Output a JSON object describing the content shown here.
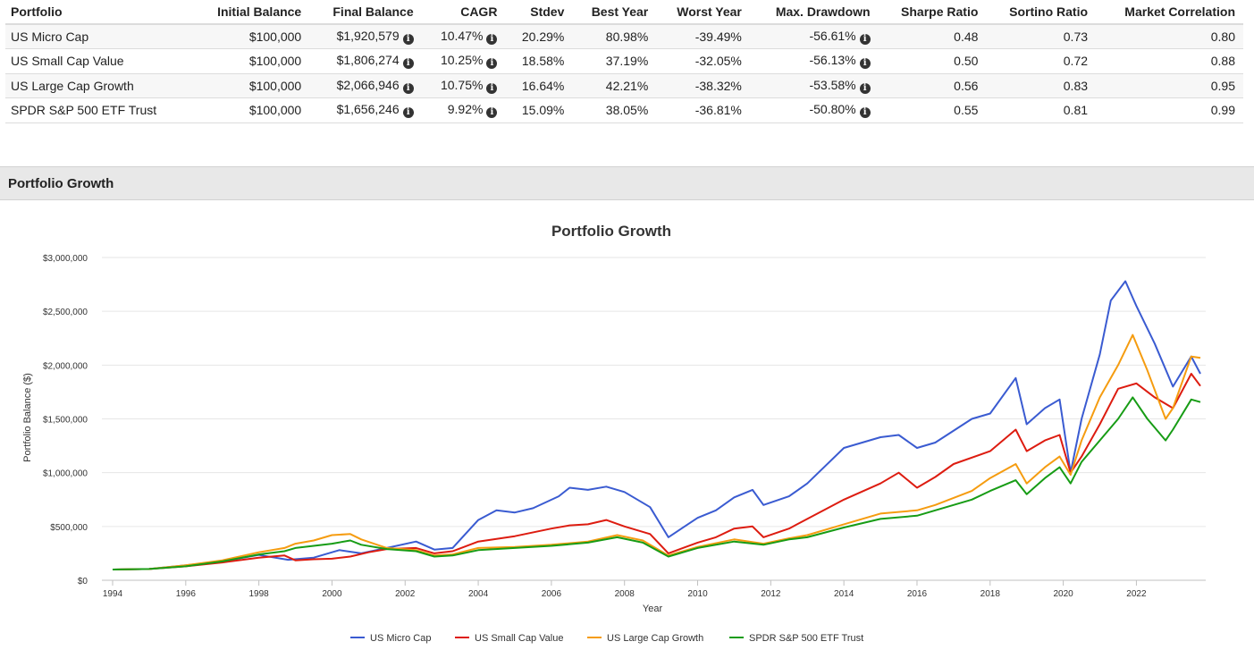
{
  "table": {
    "headers": [
      "Portfolio",
      "Initial Balance",
      "Final Balance",
      "CAGR",
      "Stdev",
      "Best Year",
      "Worst Year",
      "Max. Drawdown",
      "Sharpe Ratio",
      "Sortino Ratio",
      "Market Correlation"
    ],
    "rows": [
      [
        "US Micro Cap",
        "$100,000",
        "$1,920,579",
        "10.47%",
        "20.29%",
        "80.98%",
        "-39.49%",
        "-56.61%",
        "0.48",
        "0.73",
        "0.80"
      ],
      [
        "US Small Cap Value",
        "$100,000",
        "$1,806,274",
        "10.25%",
        "18.58%",
        "37.19%",
        "-32.05%",
        "-56.13%",
        "0.50",
        "0.72",
        "0.88"
      ],
      [
        "US Large Cap Growth",
        "$100,000",
        "$2,066,946",
        "10.75%",
        "16.64%",
        "42.21%",
        "-38.32%",
        "-53.58%",
        "0.56",
        "0.83",
        "0.95"
      ],
      [
        "SPDR S&P 500 ETF Trust",
        "$100,000",
        "$1,656,246",
        "9.92%",
        "15.09%",
        "38.05%",
        "-36.81%",
        "-50.80%",
        "0.55",
        "0.81",
        "0.99"
      ]
    ],
    "info_icon": "info-circle-icon"
  },
  "section": {
    "title": "Portfolio Growth"
  },
  "chart_data": {
    "type": "line",
    "title": "Portfolio Growth",
    "xlabel": "Year",
    "ylabel": "Portfolio Balance ($)",
    "xlim": [
      1994.0,
      2023.75
    ],
    "ylim": [
      0,
      3000000
    ],
    "x_ticks": [
      "1994",
      "1996",
      "1998",
      "2000",
      "2002",
      "2004",
      "2006",
      "2008",
      "2010",
      "2012",
      "2014",
      "2016",
      "2018",
      "2020",
      "2022"
    ],
    "y_ticks": [
      "$0",
      "$500,000",
      "$1,000,000",
      "$1,500,000",
      "$2,000,000",
      "$2,500,000",
      "$3,000,000"
    ],
    "grid": "horizontal",
    "legend": "bottom-center",
    "series": [
      {
        "name": "US Micro Cap",
        "color": "#3a5bd1",
        "points": [
          [
            1994.0,
            100000
          ],
          [
            1995.0,
            105000
          ],
          [
            1996.0,
            140000
          ],
          [
            1997.0,
            175000
          ],
          [
            1998.0,
            235000
          ],
          [
            1998.8,
            190000
          ],
          [
            1999.5,
            210000
          ],
          [
            2000.2,
            280000
          ],
          [
            2000.8,
            250000
          ],
          [
            2001.5,
            300000
          ],
          [
            2002.3,
            360000
          ],
          [
            2002.8,
            285000
          ],
          [
            2003.3,
            300000
          ],
          [
            2004.0,
            560000
          ],
          [
            2004.5,
            650000
          ],
          [
            2005.0,
            630000
          ],
          [
            2005.5,
            670000
          ],
          [
            2006.2,
            780000
          ],
          [
            2006.5,
            860000
          ],
          [
            2007.0,
            840000
          ],
          [
            2007.5,
            870000
          ],
          [
            2008.0,
            820000
          ],
          [
            2008.7,
            680000
          ],
          [
            2009.2,
            400000
          ],
          [
            2010.0,
            580000
          ],
          [
            2010.5,
            650000
          ],
          [
            2011.0,
            770000
          ],
          [
            2011.5,
            840000
          ],
          [
            2011.8,
            700000
          ],
          [
            2012.5,
            780000
          ],
          [
            2013.0,
            900000
          ],
          [
            2014.0,
            1230000
          ],
          [
            2015.0,
            1330000
          ],
          [
            2015.5,
            1350000
          ],
          [
            2016.0,
            1230000
          ],
          [
            2016.5,
            1280000
          ],
          [
            2017.5,
            1500000
          ],
          [
            2018.0,
            1550000
          ],
          [
            2018.7,
            1880000
          ],
          [
            2019.0,
            1450000
          ],
          [
            2019.5,
            1600000
          ],
          [
            2019.9,
            1680000
          ],
          [
            2020.2,
            1000000
          ],
          [
            2020.5,
            1500000
          ],
          [
            2021.0,
            2100000
          ],
          [
            2021.3,
            2600000
          ],
          [
            2021.7,
            2780000
          ],
          [
            2022.0,
            2550000
          ],
          [
            2022.5,
            2200000
          ],
          [
            2023.0,
            1800000
          ],
          [
            2023.5,
            2080000
          ],
          [
            2023.75,
            1920000
          ]
        ]
      },
      {
        "name": "US Small Cap Value",
        "color": "#dd1c10",
        "points": [
          [
            1994.0,
            100000
          ],
          [
            1995.0,
            105000
          ],
          [
            1996.0,
            130000
          ],
          [
            1997.0,
            165000
          ],
          [
            1998.0,
            210000
          ],
          [
            1998.7,
            230000
          ],
          [
            1999.0,
            185000
          ],
          [
            1999.5,
            195000
          ],
          [
            2000.0,
            200000
          ],
          [
            2000.5,
            220000
          ],
          [
            2001.0,
            260000
          ],
          [
            2001.5,
            290000
          ],
          [
            2002.3,
            300000
          ],
          [
            2002.8,
            250000
          ],
          [
            2003.3,
            270000
          ],
          [
            2004.0,
            360000
          ],
          [
            2005.0,
            410000
          ],
          [
            2006.0,
            480000
          ],
          [
            2006.5,
            510000
          ],
          [
            2007.0,
            520000
          ],
          [
            2007.5,
            560000
          ],
          [
            2008.0,
            500000
          ],
          [
            2008.7,
            430000
          ],
          [
            2009.2,
            250000
          ],
          [
            2010.0,
            350000
          ],
          [
            2010.5,
            400000
          ],
          [
            2011.0,
            480000
          ],
          [
            2011.5,
            500000
          ],
          [
            2011.8,
            400000
          ],
          [
            2012.5,
            480000
          ],
          [
            2013.0,
            570000
          ],
          [
            2014.0,
            750000
          ],
          [
            2015.0,
            900000
          ],
          [
            2015.5,
            1000000
          ],
          [
            2016.0,
            860000
          ],
          [
            2016.5,
            960000
          ],
          [
            2017.0,
            1080000
          ],
          [
            2018.0,
            1200000
          ],
          [
            2018.7,
            1400000
          ],
          [
            2019.0,
            1200000
          ],
          [
            2019.5,
            1300000
          ],
          [
            2019.9,
            1350000
          ],
          [
            2020.2,
            1000000
          ],
          [
            2020.5,
            1150000
          ],
          [
            2021.0,
            1450000
          ],
          [
            2021.5,
            1780000
          ],
          [
            2022.0,
            1830000
          ],
          [
            2022.5,
            1700000
          ],
          [
            2023.0,
            1600000
          ],
          [
            2023.5,
            1920000
          ],
          [
            2023.75,
            1806000
          ]
        ]
      },
      {
        "name": "US Large Cap Growth",
        "color": "#f59c10",
        "points": [
          [
            1994.0,
            100000
          ],
          [
            1995.0,
            105000
          ],
          [
            1996.0,
            140000
          ],
          [
            1997.0,
            185000
          ],
          [
            1998.0,
            260000
          ],
          [
            1998.7,
            300000
          ],
          [
            1999.0,
            340000
          ],
          [
            1999.5,
            370000
          ],
          [
            2000.0,
            420000
          ],
          [
            2000.5,
            430000
          ],
          [
            2000.8,
            380000
          ],
          [
            2001.5,
            300000
          ],
          [
            2002.3,
            280000
          ],
          [
            2002.8,
            230000
          ],
          [
            2003.3,
            240000
          ],
          [
            2004.0,
            300000
          ],
          [
            2005.0,
            310000
          ],
          [
            2006.0,
            330000
          ],
          [
            2007.0,
            360000
          ],
          [
            2007.8,
            420000
          ],
          [
            2008.5,
            370000
          ],
          [
            2009.2,
            230000
          ],
          [
            2010.0,
            310000
          ],
          [
            2011.0,
            380000
          ],
          [
            2011.8,
            340000
          ],
          [
            2012.5,
            390000
          ],
          [
            2013.0,
            420000
          ],
          [
            2014.0,
            520000
          ],
          [
            2015.0,
            620000
          ],
          [
            2016.0,
            650000
          ],
          [
            2016.5,
            700000
          ],
          [
            2017.5,
            830000
          ],
          [
            2018.0,
            950000
          ],
          [
            2018.7,
            1080000
          ],
          [
            2019.0,
            900000
          ],
          [
            2019.5,
            1050000
          ],
          [
            2019.9,
            1150000
          ],
          [
            2020.2,
            980000
          ],
          [
            2020.5,
            1300000
          ],
          [
            2021.0,
            1700000
          ],
          [
            2021.5,
            2000000
          ],
          [
            2021.9,
            2280000
          ],
          [
            2022.3,
            1950000
          ],
          [
            2022.8,
            1500000
          ],
          [
            2023.0,
            1600000
          ],
          [
            2023.5,
            2080000
          ],
          [
            2023.75,
            2067000
          ]
        ]
      },
      {
        "name": "SPDR S&P 500 ETF Trust",
        "color": "#179c15",
        "points": [
          [
            1994.0,
            100000
          ],
          [
            1995.0,
            105000
          ],
          [
            1996.0,
            130000
          ],
          [
            1997.0,
            175000
          ],
          [
            1998.0,
            240000
          ],
          [
            1998.7,
            270000
          ],
          [
            1999.0,
            300000
          ],
          [
            1999.5,
            320000
          ],
          [
            2000.0,
            340000
          ],
          [
            2000.5,
            370000
          ],
          [
            2000.8,
            330000
          ],
          [
            2001.5,
            290000
          ],
          [
            2002.3,
            270000
          ],
          [
            2002.8,
            220000
          ],
          [
            2003.3,
            230000
          ],
          [
            2004.0,
            280000
          ],
          [
            2005.0,
            300000
          ],
          [
            2006.0,
            320000
          ],
          [
            2007.0,
            350000
          ],
          [
            2007.8,
            400000
          ],
          [
            2008.5,
            350000
          ],
          [
            2009.2,
            220000
          ],
          [
            2010.0,
            300000
          ],
          [
            2011.0,
            360000
          ],
          [
            2011.8,
            330000
          ],
          [
            2012.5,
            380000
          ],
          [
            2013.0,
            400000
          ],
          [
            2014.0,
            490000
          ],
          [
            2015.0,
            570000
          ],
          [
            2016.0,
            600000
          ],
          [
            2016.5,
            650000
          ],
          [
            2017.5,
            750000
          ],
          [
            2018.0,
            830000
          ],
          [
            2018.7,
            930000
          ],
          [
            2019.0,
            800000
          ],
          [
            2019.5,
            950000
          ],
          [
            2019.9,
            1050000
          ],
          [
            2020.2,
            900000
          ],
          [
            2020.5,
            1100000
          ],
          [
            2021.0,
            1300000
          ],
          [
            2021.5,
            1500000
          ],
          [
            2021.9,
            1700000
          ],
          [
            2022.3,
            1500000
          ],
          [
            2022.8,
            1300000
          ],
          [
            2023.0,
            1400000
          ],
          [
            2023.5,
            1680000
          ],
          [
            2023.75,
            1656000
          ]
        ]
      }
    ]
  }
}
